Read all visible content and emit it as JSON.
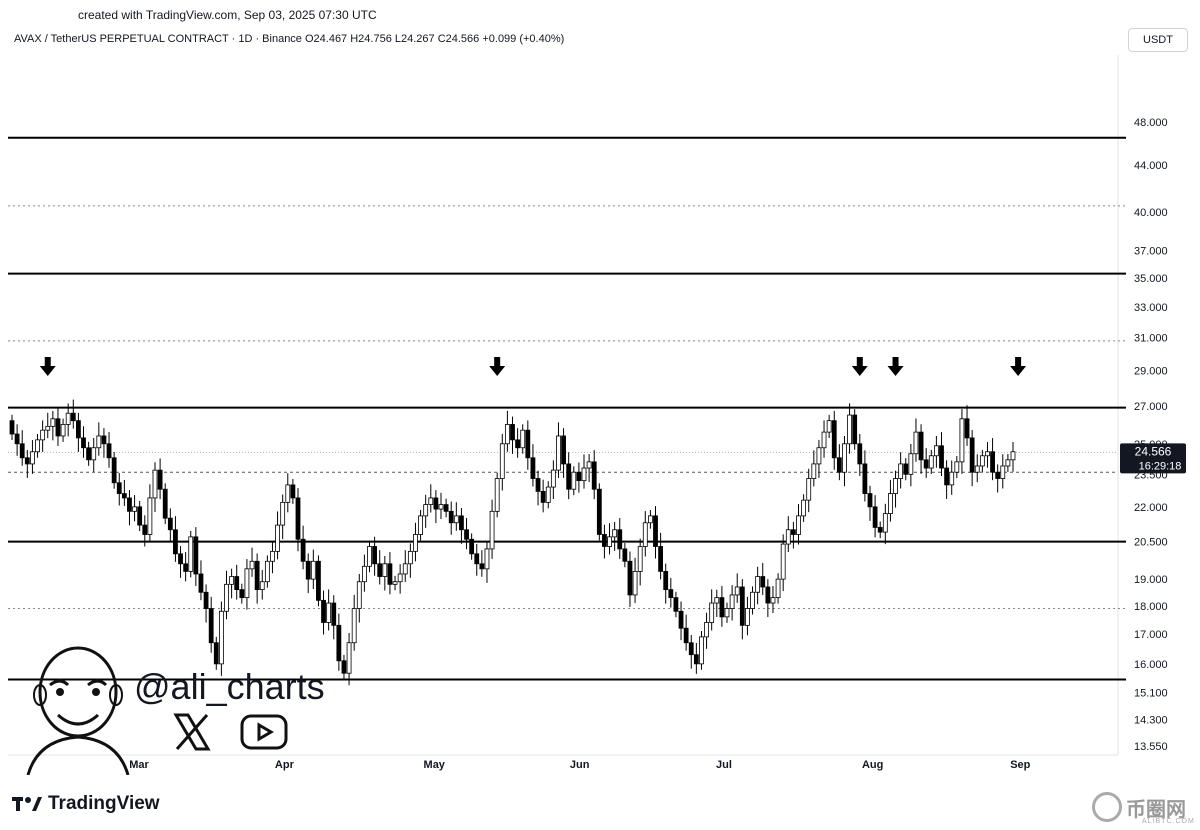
{
  "header": {
    "created_note": "created with TradingView.com, Sep 03, 2025 07:30 UTC",
    "symbol_line": "AVAX / TetherUS PERPETUAL CONTRACT · 1D · Binance  O24.467  H24.756  L24.267  C24.566  +0.099 (+0.40%)",
    "currency": "USDT"
  },
  "price_tag": {
    "price": "24.566",
    "countdown": "16:29:18"
  },
  "branding": {
    "handle": "@ali_charts",
    "footer_logo": "TradingView",
    "watermark": "币圈网",
    "watermark_sub": "ALIBTC.COM",
    "social_icons": [
      "x-icon",
      "youtube-icon"
    ]
  },
  "chart_data": {
    "type": "candlestick",
    "title": "",
    "ylabel": "USDT",
    "y_scale": "log",
    "ylim": [
      13.3,
      55.0
    ],
    "y_ticks": [
      "48.000",
      "44.000",
      "40.000",
      "37.000",
      "35.000",
      "33.000",
      "31.000",
      "29.000",
      "27.000",
      "25.000",
      "23.500",
      "22.000",
      "20.500",
      "19.000",
      "18.000",
      "17.000",
      "16.000",
      "15.100",
      "14.300",
      "13.550"
    ],
    "x_ticks": [
      "Mar",
      "Apr",
      "May",
      "Jun",
      "Jul",
      "Aug",
      "Sep"
    ],
    "last_price": 24.566,
    "support_resistance_levels": [
      46.5,
      35.3,
      26.9,
      20.5,
      15.5
    ],
    "dotted_levels": [
      40.5,
      30.8,
      17.9
    ],
    "dashed_levels": [
      24.566,
      23.6
    ],
    "rejection_arrows_count": 5,
    "series": [
      {
        "values": [
          25.5,
          25.0,
          24.3,
          24.0,
          24.6,
          25.2,
          25.7,
          25.9,
          26.3,
          25.4,
          26.0,
          26.6,
          26.2,
          25.3,
          24.8,
          24.2,
          24.8,
          25.4,
          25.0,
          24.3,
          23.1,
          22.6,
          22.4,
          21.8,
          22.0,
          21.2,
          20.8,
          22.4,
          23.7,
          22.8,
          21.5,
          21.0,
          20.0,
          19.6,
          19.3,
          20.7,
          19.2,
          18.5,
          17.9,
          16.7,
          16.0,
          17.8,
          18.8,
          19.1,
          18.6,
          18.3,
          19.4,
          19.7,
          18.6,
          18.9,
          19.7,
          20.1,
          21.2,
          22.2,
          23.0,
          22.4,
          20.6,
          19.7,
          19.0,
          19.7,
          18.2,
          17.4,
          18.1,
          17.3,
          16.1,
          15.7,
          16.7,
          17.9,
          18.9,
          19.5,
          20.3,
          19.6,
          19.1,
          19.6,
          18.8,
          18.9,
          19.2,
          19.6,
          20.1,
          20.8,
          21.6,
          22.1,
          22.4,
          21.9,
          22.1,
          21.8,
          21.3,
          21.6,
          21.0,
          20.6,
          20.0,
          19.6,
          19.4,
          20.2,
          21.8,
          23.3,
          25.0,
          26.0,
          25.2,
          24.8,
          25.7,
          24.3,
          23.3,
          22.7,
          22.2,
          22.9,
          23.7,
          25.4,
          24.0,
          22.8,
          23.6,
          23.2,
          23.8,
          24.1,
          22.8,
          20.8,
          20.3,
          20.7,
          21.0,
          20.2,
          19.7,
          18.4,
          19.3,
          20.3,
          21.3,
          21.6,
          20.3,
          19.3,
          18.6,
          18.3,
          17.8,
          17.2,
          16.7,
          16.3,
          16.0,
          16.9,
          17.4,
          18.1,
          18.3,
          17.6,
          17.9,
          18.4,
          18.7,
          17.3,
          17.9,
          18.5,
          19.1,
          18.7,
          18.1,
          18.3,
          19.0,
          20.4,
          21.0,
          20.8,
          21.6,
          22.3,
          23.3,
          24.0,
          24.8,
          25.6,
          26.2,
          24.3,
          23.6,
          25.0,
          26.5,
          25.0,
          24.0,
          22.6,
          22.0,
          21.1,
          20.9,
          21.7,
          22.6,
          23.3,
          24.0,
          23.5,
          24.5,
          25.6,
          24.2,
          23.8,
          24.4,
          24.9,
          23.8,
          23.0,
          23.6,
          24.1,
          26.3,
          25.3,
          23.6,
          23.9,
          24.4,
          24.6,
          23.6,
          23.3,
          23.9,
          24.2,
          24.6
        ]
      }
    ]
  }
}
